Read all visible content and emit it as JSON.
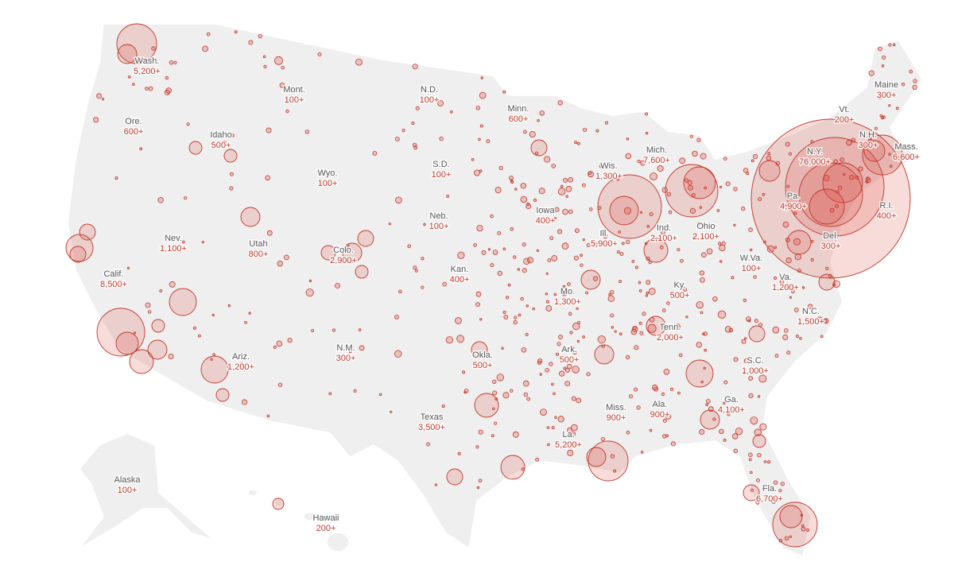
{
  "states": [
    {
      "name": "Wash.",
      "cases": "5,200+"
    },
    {
      "name": "Mont.",
      "cases": "100+"
    },
    {
      "name": "N.D.",
      "cases": "100+"
    },
    {
      "name": "Minn.",
      "cases": "600+"
    },
    {
      "name": "Maine",
      "cases": "300+"
    },
    {
      "name": "Ore.",
      "cases": "600+"
    },
    {
      "name": "Idaho",
      "cases": "500+"
    },
    {
      "name": "Wyo.",
      "cases": "100+"
    },
    {
      "name": "S.D.",
      "cases": "100+"
    },
    {
      "name": "Wis.",
      "cases": "1,300+"
    },
    {
      "name": "Mich.",
      "cases": "7,600+"
    },
    {
      "name": "Vt.",
      "cases": "200+"
    },
    {
      "name": "N.H.",
      "cases": "300+"
    },
    {
      "name": "N.Y.",
      "cases": "76,000+"
    },
    {
      "name": "Mass.",
      "cases": "6,600+"
    },
    {
      "name": "Pa.",
      "cases": "4,900+"
    },
    {
      "name": "R.I.",
      "cases": "400+"
    },
    {
      "name": "Nev.",
      "cases": "1,100+"
    },
    {
      "name": "Utah",
      "cases": "800+"
    },
    {
      "name": "Colo.",
      "cases": "2,900+"
    },
    {
      "name": "Neb.",
      "cases": "100+"
    },
    {
      "name": "Iowa",
      "cases": "400+"
    },
    {
      "name": "Ill.",
      "cases": "5,900+"
    },
    {
      "name": "Ind.",
      "cases": "2,100+"
    },
    {
      "name": "Ohio",
      "cases": "2,100+"
    },
    {
      "name": "Del.",
      "cases": "300+"
    },
    {
      "name": "Calif.",
      "cases": "8,500+"
    },
    {
      "name": "Kan.",
      "cases": "400+"
    },
    {
      "name": "W.Va.",
      "cases": "100+"
    },
    {
      "name": "Mo.",
      "cases": "1,300+"
    },
    {
      "name": "Ky.",
      "cases": "500+"
    },
    {
      "name": "Va.",
      "cases": "1,200+"
    },
    {
      "name": "N.C.",
      "cases": "1,500+"
    },
    {
      "name": "Tenn.",
      "cases": "2,000+"
    },
    {
      "name": "Ariz.",
      "cases": "1,200+"
    },
    {
      "name": "N.M.",
      "cases": "300+"
    },
    {
      "name": "Okla.",
      "cases": "500+"
    },
    {
      "name": "Ark.",
      "cases": "500+"
    },
    {
      "name": "S.C.",
      "cases": "1,000+"
    },
    {
      "name": "Miss.",
      "cases": "900+"
    },
    {
      "name": "Ala.",
      "cases": "900+"
    },
    {
      "name": "Ga.",
      "cases": "4,100+"
    },
    {
      "name": "Texas",
      "cases": "3,500+"
    },
    {
      "name": "La.",
      "cases": "5,200+"
    },
    {
      "name": "Alaska",
      "cases": "100+"
    },
    {
      "name": "Fla.",
      "cases": "6,700+"
    },
    {
      "name": "Hawaii",
      "cases": "200+"
    }
  ]
}
